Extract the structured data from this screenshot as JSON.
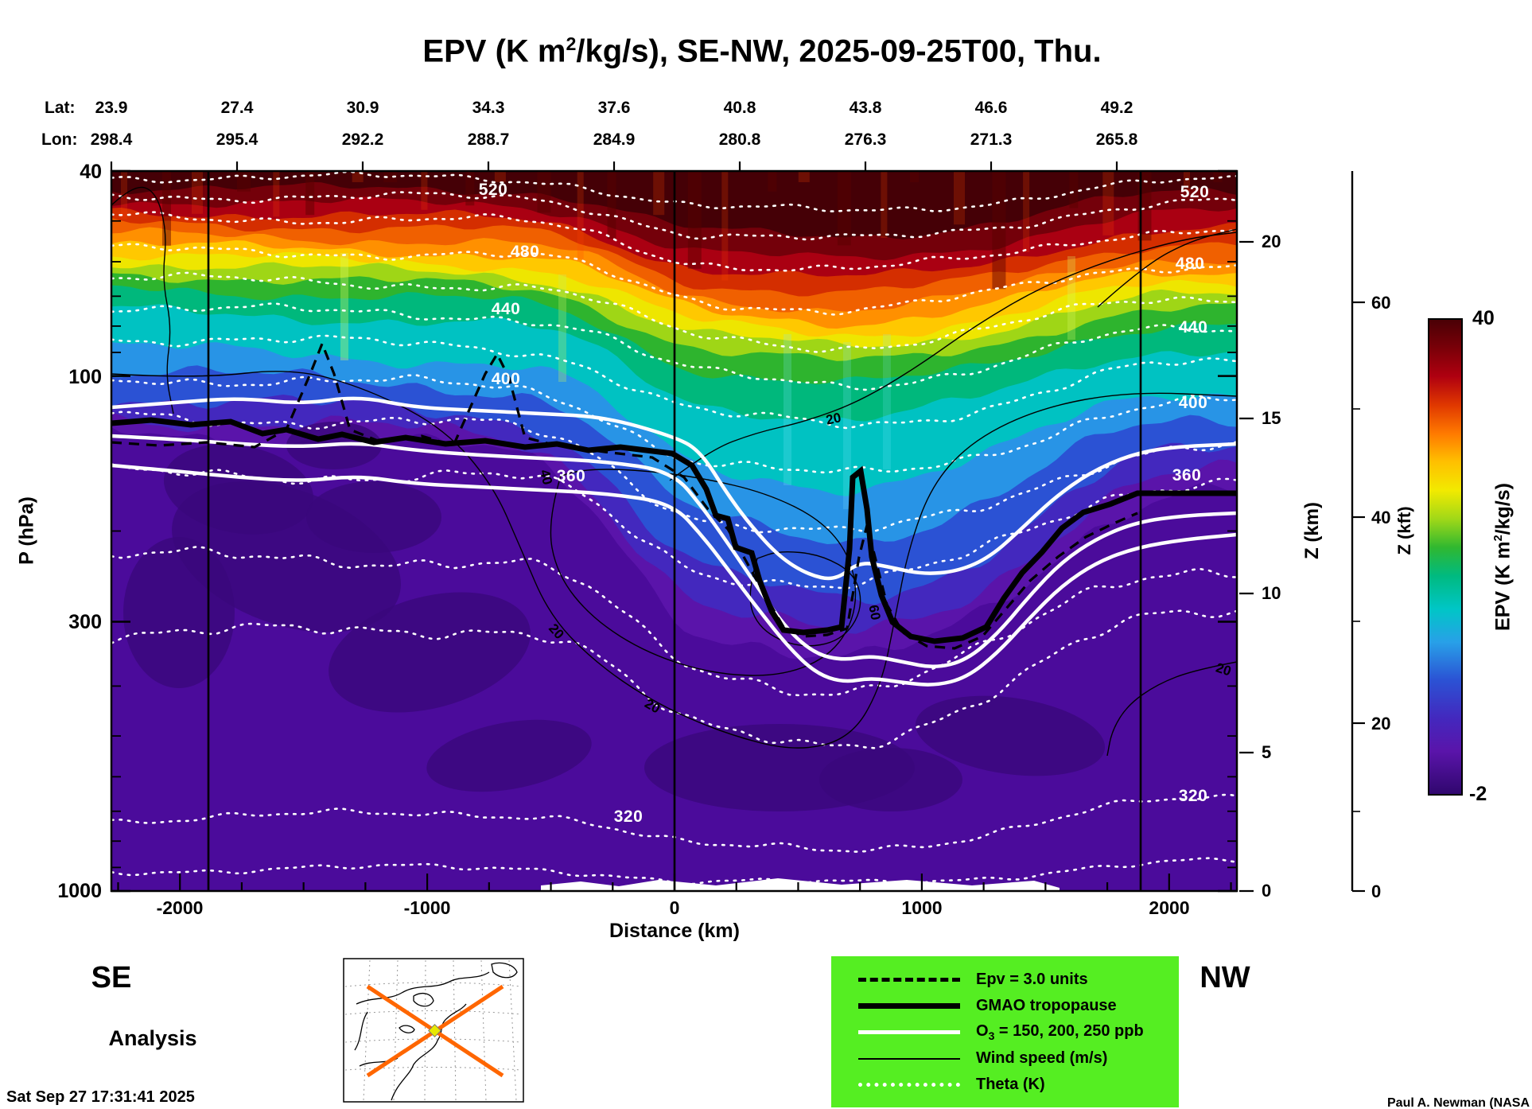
{
  "title": {
    "pre": "EPV (K m",
    "sup": "2",
    "post": "/kg/s), SE-NW, 2025-09-25T00, Thu."
  },
  "top_axis": {
    "lat_label": "Lat:",
    "lon_label": "Lon:",
    "lat": [
      "23.9",
      "27.4",
      "30.9",
      "34.3",
      "37.6",
      "40.8",
      "43.8",
      "46.6",
      "49.2"
    ],
    "lon": [
      "298.4",
      "295.4",
      "292.2",
      "288.7",
      "284.9",
      "280.8",
      "276.3",
      "271.3",
      "265.8"
    ]
  },
  "p_axis": {
    "label": "P (hPa)",
    "ticks": [
      "40",
      "100",
      "300",
      "1000"
    ]
  },
  "x_axis": {
    "label": "Distance (km)",
    "ticks": [
      "-2000",
      "-1000",
      "0",
      "1000",
      "2000"
    ]
  },
  "z_km_axis": {
    "label": "Z (km)",
    "ticks": [
      "20",
      "15",
      "10",
      "5",
      "0"
    ]
  },
  "z_kft_axis": {
    "label": "Z (kft)",
    "ticks": [
      "60",
      "40",
      "20",
      "0"
    ]
  },
  "colorbar": {
    "max": "40",
    "min": "-2",
    "label_pre": "EPV (K m",
    "label_sup": "2",
    "label_post": "/kg/s)"
  },
  "theta_labels": [
    "520",
    "480",
    "440",
    "400",
    "360",
    "320"
  ],
  "wind_labels": [
    "20",
    "20",
    "40",
    "20",
    "60",
    "20"
  ],
  "corners": {
    "se": "SE",
    "nw": "NW"
  },
  "analysis_label": "Analysis",
  "footer": {
    "timestamp": "Sat Sep 27 17:31:41 2025",
    "credit": "Paul A. Newman (NASA"
  },
  "legend": {
    "epv_label": "Epv = 3.0 units",
    "tropopause_label": "GMAO tropopause",
    "o3_pre": "O",
    "o3_sub": "3",
    "o3_post": " = 150, 200, 250 ppb",
    "wind_label": "Wind speed (m/s)",
    "theta_label": "Theta (K)"
  },
  "chart_data": {
    "type": "heatmap",
    "title": "EPV (K m2/kg/s), SE-NW, 2025-09-25T00, Thu.",
    "field": "Ertel potential vorticity vertical cross-section along a SE-NW great-circle path",
    "xlabel": "Distance (km)",
    "x_ticks": [
      -2000,
      -1000,
      0,
      1000,
      2000
    ],
    "x_range_km": [
      -2280,
      2275
    ],
    "ylabel": "P (hPa)",
    "y_scale": "log",
    "y_ticks_hPa": [
      40,
      100,
      300,
      1000
    ],
    "y_range_hPa": [
      40,
      1000
    ],
    "z_km_ticks": [
      0,
      5,
      10,
      15,
      20
    ],
    "z_kft_ticks": [
      0,
      20,
      40,
      60
    ],
    "colorbar": {
      "label": "EPV (K m2/kg/s)",
      "min": -2,
      "max": 40,
      "colors_top_to_bottom": [
        "#4a0005",
        "#7a0008",
        "#b00010",
        "#e03800",
        "#ff7a00",
        "#ffc000",
        "#f2ea00",
        "#a0d818",
        "#30b830",
        "#00ba80",
        "#00c6c6",
        "#28a0e8",
        "#2b52d4",
        "#4328be",
        "#5a14aa",
        "#30076e"
      ]
    },
    "top_axis": {
      "lat": [
        23.9,
        27.4,
        30.9,
        34.3,
        37.6,
        40.8,
        43.8,
        46.6,
        49.2
      ],
      "lon": [
        298.4,
        295.4,
        292.2,
        288.7,
        284.9,
        280.8,
        276.3,
        271.3,
        265.8
      ]
    },
    "overlays": [
      {
        "name": "Theta (K)",
        "style": "white dotted contours",
        "labeled_levels": [
          320,
          360,
          400,
          440,
          480,
          520
        ]
      },
      {
        "name": "Wind speed (m/s)",
        "style": "thin black contours",
        "labeled_levels": [
          20,
          40,
          60
        ]
      },
      {
        "name": "GMAO tropopause",
        "style": "thick black line"
      },
      {
        "name": "O3 = 150, 200, 250 ppb",
        "style": "thick white lines"
      },
      {
        "name": "Epv = 3.0 units",
        "style": "black dashed line"
      }
    ],
    "notable_features": [
      "High EPV stratosphere (orange/red, 20-40 units) above ~70 hPa",
      "Tropopause, ozone and EPV=3 surfaces dip sharply in a trough/fold between x=500 and 1400 km, reaching about 300 hPa near x=1000 km",
      "Low-EPV purple troposphere (about -2 to 2 units) below the tropopause",
      "Three vertical reference lines near x = -1885, 0 and +1885 km",
      "Inset map shows the SE-NW section path as an orange X over eastern North America"
    ],
    "run_label": "Analysis",
    "valid_time": "2025-09-25T00",
    "created": "Sat Sep 27 17:31:41 2025"
  }
}
